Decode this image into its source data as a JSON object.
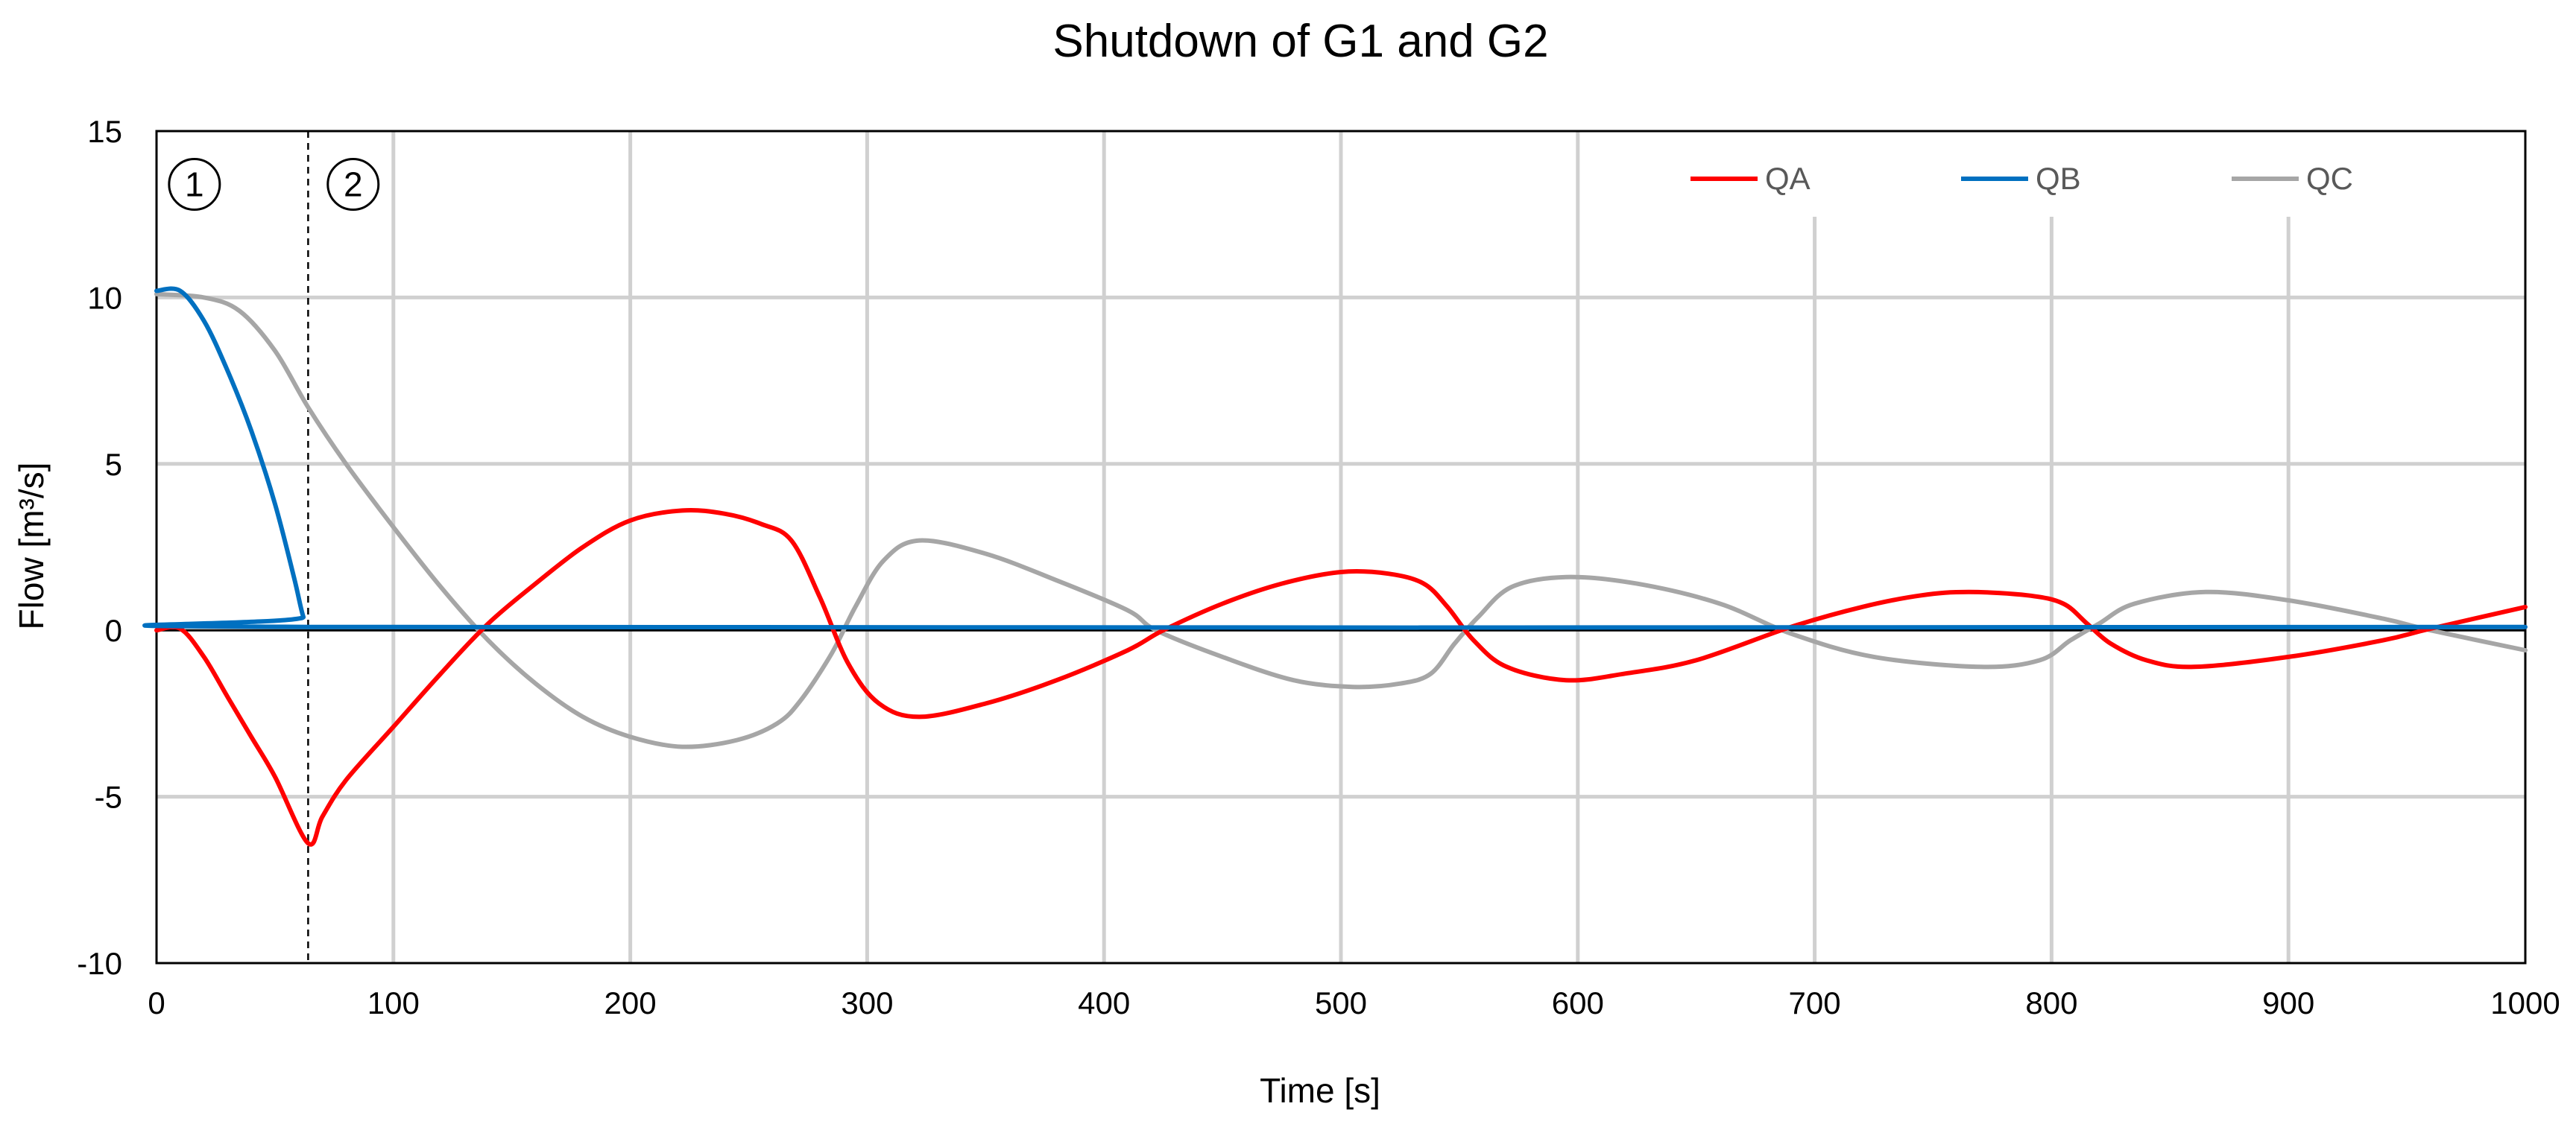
{
  "chart_data": {
    "type": "line",
    "title": "Shutdown of G1 and G2",
    "xlabel": "Time [s]",
    "ylabel": "Flow [m³/s]",
    "xlim": [
      0,
      1000
    ],
    "ylim": [
      -10,
      15
    ],
    "x_ticks": [
      0,
      100,
      200,
      300,
      400,
      500,
      600,
      700,
      800,
      900,
      1000
    ],
    "y_ticks": [
      -10,
      -5,
      0,
      5,
      10,
      15
    ],
    "grid": "vertical",
    "legend_position": "top-right",
    "annotations": [
      {
        "text": "①",
        "x": 16,
        "y": 13.4
      },
      {
        "text": "②",
        "x": 83,
        "y": 13.4
      }
    ],
    "reference_line": {
      "x": 64,
      "style": "dashed"
    },
    "series": [
      {
        "name": "QA",
        "color": "#ff0000",
        "points": [
          [
            0,
            0
          ],
          [
            10,
            0.05
          ],
          [
            20,
            -0.8
          ],
          [
            30,
            -2.0
          ],
          [
            40,
            -3.2
          ],
          [
            50,
            -4.4
          ],
          [
            64,
            -6.4
          ],
          [
            70,
            -5.6
          ],
          [
            80,
            -4.5
          ],
          [
            100,
            -2.9
          ],
          [
            120,
            -1.3
          ],
          [
            140,
            0.2
          ],
          [
            160,
            1.4
          ],
          [
            180,
            2.5
          ],
          [
            200,
            3.3
          ],
          [
            222,
            3.6
          ],
          [
            240,
            3.5
          ],
          [
            255,
            3.2
          ],
          [
            268,
            2.7
          ],
          [
            280,
            1.0
          ],
          [
            292,
            -1.0
          ],
          [
            305,
            -2.2
          ],
          [
            322,
            -2.6
          ],
          [
            350,
            -2.2
          ],
          [
            380,
            -1.5
          ],
          [
            410,
            -0.6
          ],
          [
            425,
            0.0
          ],
          [
            450,
            0.8
          ],
          [
            475,
            1.4
          ],
          [
            500,
            1.75
          ],
          [
            520,
            1.7
          ],
          [
            535,
            1.4
          ],
          [
            545,
            0.7
          ],
          [
            556,
            -0.3
          ],
          [
            570,
            -1.1
          ],
          [
            595,
            -1.5
          ],
          [
            620,
            -1.3
          ],
          [
            650,
            -0.9
          ],
          [
            690,
            0.1
          ],
          [
            720,
            0.7
          ],
          [
            745,
            1.05
          ],
          [
            765,
            1.15
          ],
          [
            790,
            1.05
          ],
          [
            805,
            0.8
          ],
          [
            815,
            0.2
          ],
          [
            825,
            -0.4
          ],
          [
            840,
            -0.9
          ],
          [
            860,
            -1.1
          ],
          [
            900,
            -0.8
          ],
          [
            940,
            -0.3
          ],
          [
            960,
            0.05
          ],
          [
            1000,
            0.7
          ]
        ]
      },
      {
        "name": "QB",
        "color": "#0070c0",
        "points": [
          [
            0,
            10.2
          ],
          [
            10,
            10.2
          ],
          [
            20,
            9.3
          ],
          [
            30,
            7.8
          ],
          [
            40,
            6.0
          ],
          [
            50,
            3.8
          ],
          [
            58,
            1.6
          ],
          [
            62,
            0.4
          ],
          [
            65,
            0.1
          ],
          [
            1000,
            0.1
          ]
        ]
      },
      {
        "name": "QC",
        "color": "#a6a6a6",
        "points": [
          [
            0,
            10.1
          ],
          [
            20,
            10.0
          ],
          [
            35,
            9.6
          ],
          [
            50,
            8.4
          ],
          [
            64,
            6.7
          ],
          [
            80,
            5.0
          ],
          [
            100,
            3.1
          ],
          [
            120,
            1.3
          ],
          [
            140,
            -0.3
          ],
          [
            160,
            -1.6
          ],
          [
            180,
            -2.6
          ],
          [
            200,
            -3.2
          ],
          [
            222,
            -3.5
          ],
          [
            245,
            -3.3
          ],
          [
            262,
            -2.8
          ],
          [
            272,
            -2.1
          ],
          [
            285,
            -0.7
          ],
          [
            295,
            0.7
          ],
          [
            307,
            2.1
          ],
          [
            322,
            2.7
          ],
          [
            350,
            2.3
          ],
          [
            380,
            1.5
          ],
          [
            410,
            0.6
          ],
          [
            422,
            0.0
          ],
          [
            450,
            -0.8
          ],
          [
            480,
            -1.5
          ],
          [
            505,
            -1.7
          ],
          [
            525,
            -1.6
          ],
          [
            538,
            -1.3
          ],
          [
            548,
            -0.4
          ],
          [
            558,
            0.4
          ],
          [
            572,
            1.3
          ],
          [
            595,
            1.6
          ],
          [
            625,
            1.4
          ],
          [
            660,
            0.8
          ],
          [
            690,
            -0.1
          ],
          [
            725,
            -0.8
          ],
          [
            770,
            -1.1
          ],
          [
            795,
            -0.9
          ],
          [
            808,
            -0.3
          ],
          [
            820,
            0.2
          ],
          [
            835,
            0.8
          ],
          [
            865,
            1.15
          ],
          [
            900,
            0.9
          ],
          [
            940,
            0.35
          ],
          [
            960,
            0.0
          ],
          [
            1000,
            -0.6
          ]
        ]
      }
    ]
  }
}
